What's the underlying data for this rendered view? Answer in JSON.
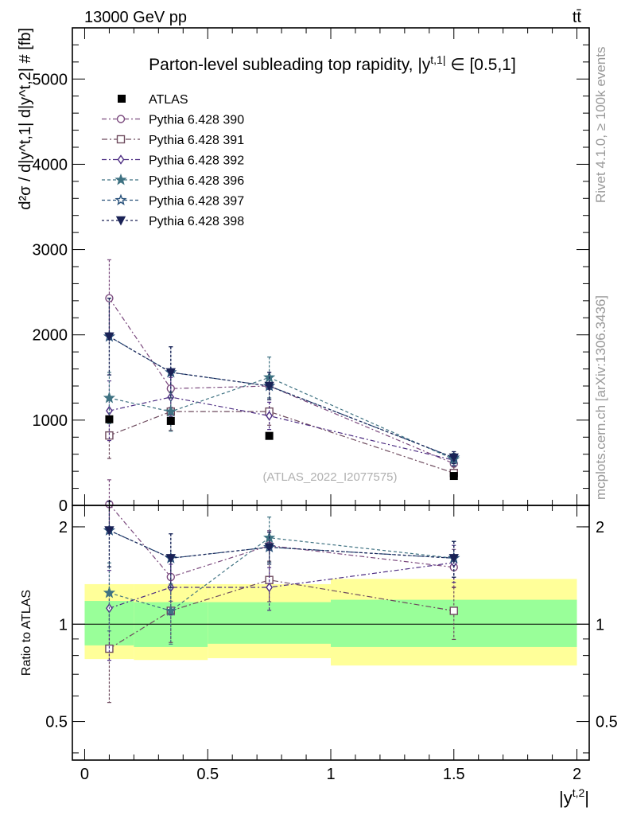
{
  "header": {
    "left": "13000 GeV pp",
    "right": "tt̄"
  },
  "side_labels": {
    "upper": "Rivet 4.1.0, ≥ 100k events",
    "lower": "mcplots.cern.ch [arXiv:1306.3436]"
  },
  "watermark": "(ATLAS_2022_I2077575)",
  "chart_data": {
    "type": "scatter",
    "title": "Parton-level subleading top rapidity, |y^t,1| ∈ [0.5,1]",
    "xlabel": "|y^t,2|",
    "ylabel": "d²σ / d|y^t,1| d|y^t,2| # [fb]",
    "ratio_ylabel": "Ratio to ATLAS",
    "xlim": [
      -0.05,
      2.05
    ],
    "ylim_main": [
      0,
      5600
    ],
    "ylim_ratio": [
      0.38,
      2.33
    ],
    "x_ticks": [
      "0",
      "0.5",
      "1",
      "1.5",
      "2"
    ],
    "y_ticks_main": [
      "0",
      "1000",
      "2000",
      "3000",
      "4000",
      "5000"
    ],
    "y_ticks_ratio": [
      "0.5",
      "1",
      "2"
    ],
    "bins": [
      [
        0,
        0.2
      ],
      [
        0.2,
        0.5
      ],
      [
        0.5,
        1.0
      ],
      [
        1.0,
        2.0
      ]
    ],
    "x": [
      0.1,
      0.35,
      0.75,
      1.5
    ],
    "data": {
      "name": "ATLAS",
      "values": [
        1010,
        990,
        815,
        345
      ],
      "stat_band": [
        [
          0.86,
          1.18
        ],
        [
          0.85,
          1.17
        ],
        [
          0.87,
          1.17
        ],
        [
          0.85,
          1.19
        ]
      ],
      "total_band": [
        [
          0.78,
          1.33
        ],
        [
          0.775,
          1.33
        ],
        [
          0.785,
          1.33
        ],
        [
          0.745,
          1.38
        ]
      ]
    },
    "series": [
      {
        "name": "Pythia 6.428 390",
        "color": "#7b4a7e",
        "marker": "circle-open",
        "values": [
          2430,
          1370,
          1400,
          490
        ],
        "errors": [
          450,
          220,
          160,
          70
        ],
        "ratio": [
          2.35,
          1.4,
          1.75,
          1.5
        ]
      },
      {
        "name": "Pythia 6.428 391",
        "color": "#6e4b5e",
        "marker": "square-open",
        "values": [
          820,
          1100,
          1100,
          380
        ],
        "errors": [
          270,
          220,
          160,
          70
        ],
        "ratio": [
          0.84,
          1.1,
          1.37,
          1.1
        ]
      },
      {
        "name": "Pythia 6.428 392",
        "color": "#4c2c82",
        "marker": "diamond-open",
        "values": [
          1110,
          1270,
          1050,
          530
        ],
        "errors": [
          350,
          230,
          160,
          70
        ],
        "ratio": [
          1.12,
          1.3,
          1.3,
          1.55
        ]
      },
      {
        "name": "Pythia 6.428 396",
        "color": "#3f7282",
        "marker": "star-filled",
        "values": [
          1260,
          1100,
          1500,
          540
        ],
        "errors": [
          300,
          230,
          240,
          70
        ],
        "ratio": [
          1.25,
          1.1,
          1.85,
          1.6
        ]
      },
      {
        "name": "Pythia 6.428 397",
        "color": "#27507a",
        "marker": "star-open",
        "values": [
          1980,
          1560,
          1400,
          560
        ],
        "errors": [
          450,
          300,
          160,
          70
        ],
        "ratio": [
          1.95,
          1.6,
          1.73,
          1.6
        ]
      },
      {
        "name": "Pythia 6.428 398",
        "color": "#1a2256",
        "marker": "triangle-down-filled",
        "values": [
          1980,
          1560,
          1400,
          560
        ],
        "errors": [
          450,
          300,
          160,
          70
        ],
        "ratio": [
          1.95,
          1.6,
          1.73,
          1.6
        ]
      }
    ]
  }
}
